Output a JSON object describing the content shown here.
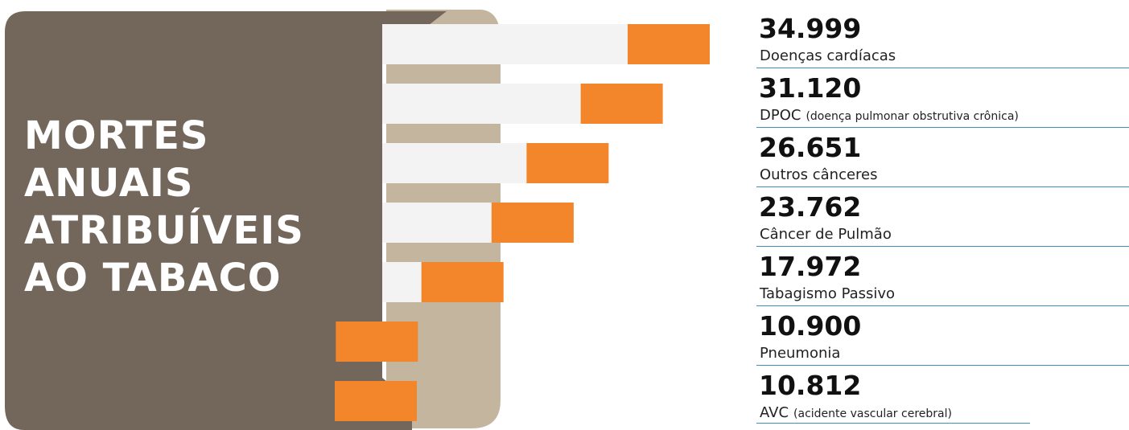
{
  "title_lines": [
    "MORTES",
    "ANUAIS",
    "ATRIBUÍVEIS",
    "AO TABACO"
  ],
  "colors": {
    "panel": "#73675b",
    "tan": "#c4b59f",
    "bar_track": "#f2f3f2",
    "bar": "#f3862a",
    "rule": "#3f8fb8"
  },
  "chart_data": {
    "type": "bar",
    "orientation": "horizontal",
    "title": "MORTES ANUAIS ATRIBUÍVEIS AO TABACO",
    "categories": [
      "Doenças cardíacas",
      "DPOC (doença pulmonar obstrutiva crônica)",
      "Outros cânceres",
      "Câncer de Pulmão",
      "Tabagismo Passivo",
      "Pneumonia",
      "AVC (acidente vascular cerebral)"
    ],
    "values": [
      34999,
      31120,
      26651,
      23762,
      17972,
      10900,
      10812
    ]
  },
  "rows": [
    {
      "value": "34.999",
      "label": "Doenças cardíacas",
      "note": ""
    },
    {
      "value": "31.120",
      "label": "DPOC",
      "note": "(doença pulmonar obstrutiva crônica)"
    },
    {
      "value": "26.651",
      "label": "Outros cânceres",
      "note": ""
    },
    {
      "value": "23.762",
      "label": "Câncer de Pulmão",
      "note": ""
    },
    {
      "value": "17.972",
      "label": "Tabagismo Passivo",
      "note": ""
    },
    {
      "value": "10.900",
      "label": "Pneumonia",
      "note": ""
    },
    {
      "value": "10.812",
      "label": "AVC",
      "note": "(acidente vascular cerebral)"
    }
  ]
}
